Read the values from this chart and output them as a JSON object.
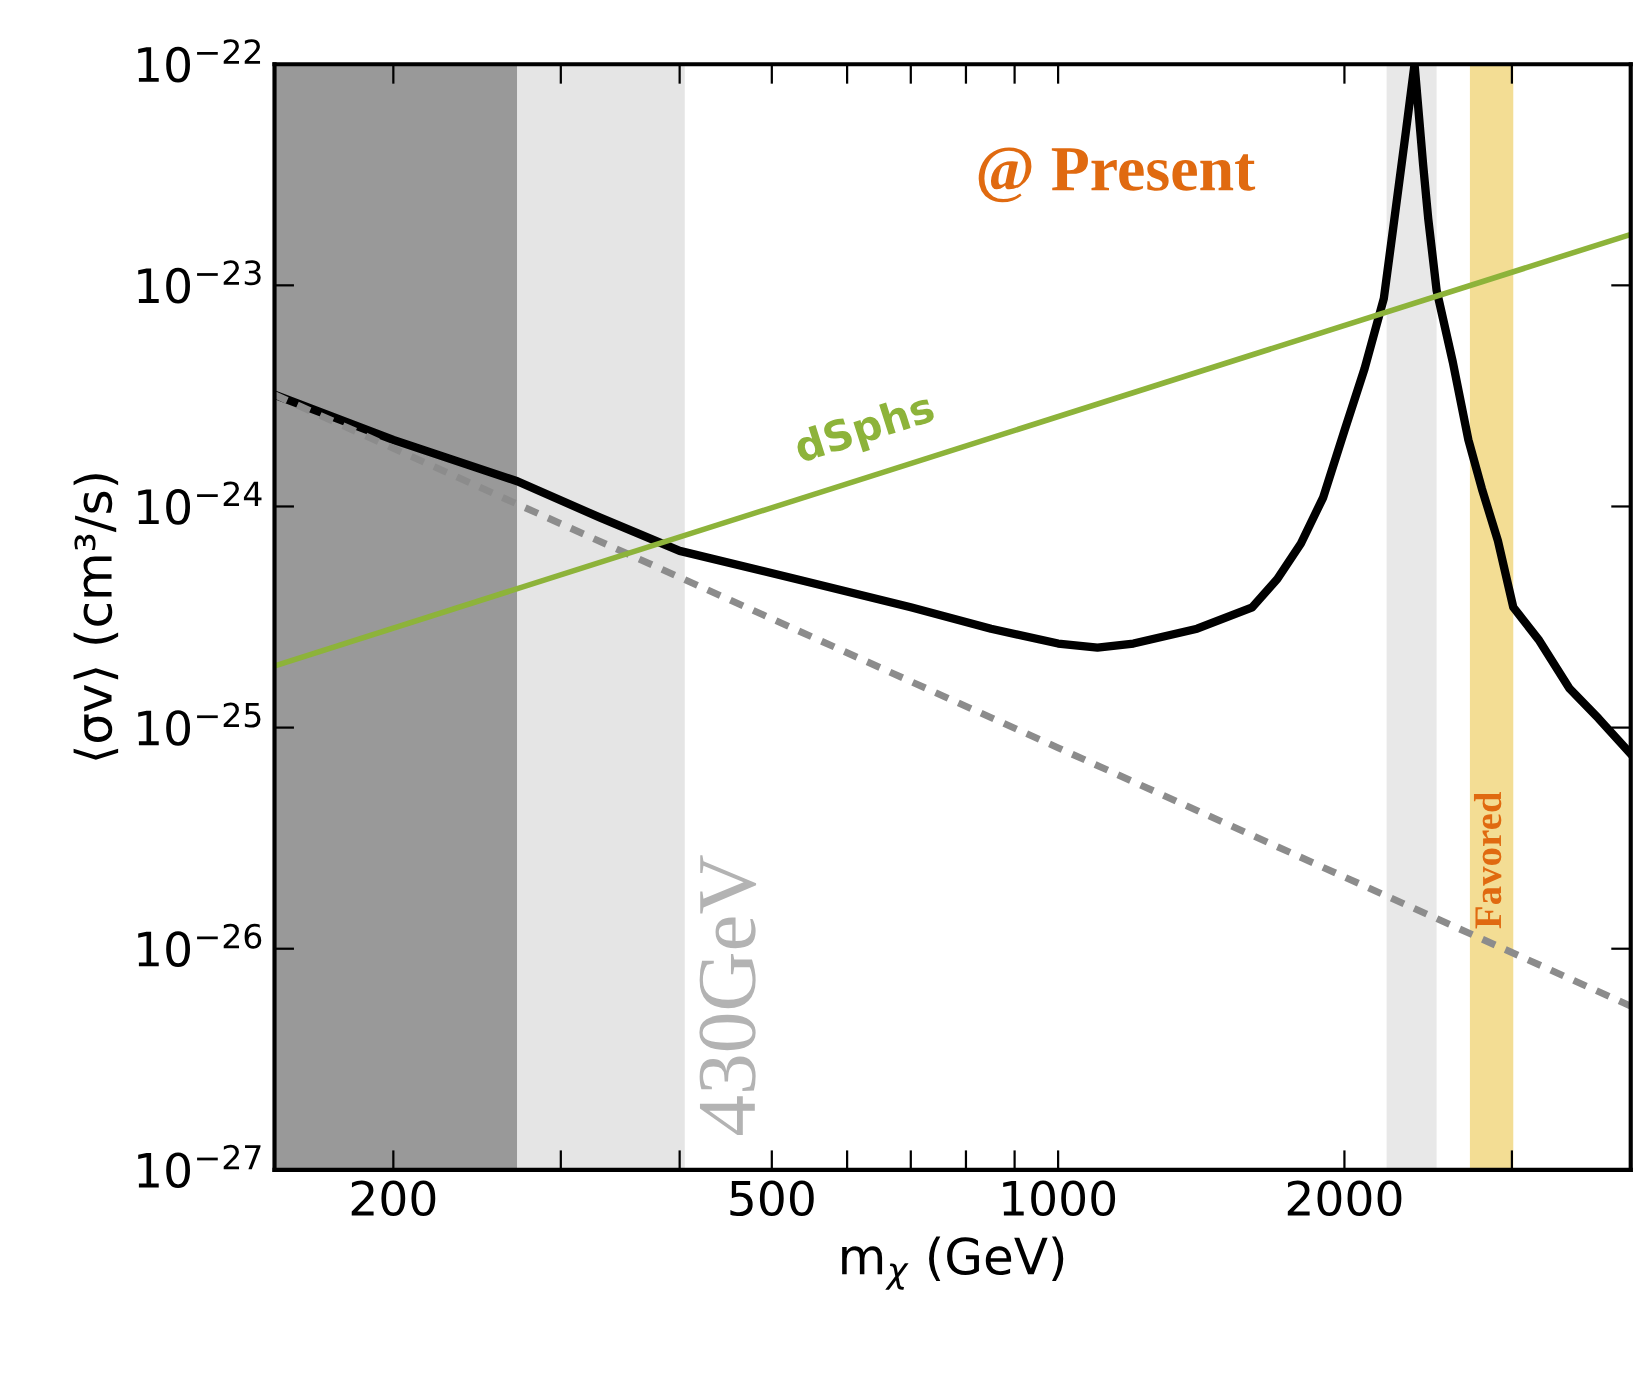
{
  "chart_data": {
    "type": "line",
    "xlabel": "m$_{χ}$ (GeV)",
    "ylabel": "⟨σv⟩ (cm³/s)",
    "log": "xy",
    "grid": false,
    "legend": false,
    "marker": "none",
    "xlim": [
      150,
      4000
    ],
    "ylim": [
      1e-27,
      1e-22
    ],
    "xticks": [
      200,
      {
        "value": 300,
        "label": null
      },
      {
        "value": 400,
        "label": null
      },
      500,
      {
        "value": 600,
        "label": null
      },
      {
        "value": 700,
        "label": null
      },
      {
        "value": 800,
        "label": null
      },
      {
        "value": 900,
        "label": null
      },
      1000,
      2000,
      {
        "value": 3000,
        "label": null
      },
      {
        "value": 4000,
        "label": null
      }
    ],
    "yticks": [
      {
        "value": 1e-27,
        "label": "10$^{−27}$"
      },
      {
        "value": 1e-26,
        "label": "10$^{−26}$"
      },
      {
        "value": 1e-25,
        "label": "10$^{−25}$"
      },
      {
        "value": 1e-24,
        "label": "10$^{−24}$"
      },
      {
        "value": 1e-23,
        "label": "10$^{−23}$"
      },
      {
        "value": 1e-22,
        "label": "10$^{−22}$"
      }
    ],
    "series": [
      {
        "color": "#000000",
        "line_style": "solid",
        "x": [
          150,
          200,
          270,
          330,
          400,
          530,
          700,
          850,
          1000,
          1100,
          1200,
          1400,
          1600,
          1700,
          1800,
          1900,
          2000,
          2100,
          2200,
          2250,
          2320,
          2370,
          2420,
          2450,
          2500,
          2600,
          2700,
          2790,
          2900,
          3010,
          3200,
          3450,
          3700,
          4000
        ],
        "values": [
          3.2e-24,
          2e-24,
          1.3e-24,
          8.9e-25,
          6.3e-25,
          4.7e-25,
          3.5e-25,
          2.8e-25,
          2.4e-25,
          2.3e-25,
          2.4e-25,
          2.8e-25,
          3.5e-25,
          4.7e-25,
          6.8e-25,
          1.1e-24,
          2.2e-24,
          4.2e-24,
          8.7e-24,
          1.8e-23,
          4.9e-23,
          1e-22,
          3.5e-23,
          2e-23,
          9.5e-24,
          4.5e-24,
          2e-24,
          1.2e-24,
          7e-25,
          3.5e-25,
          2.5e-25,
          1.5e-25,
          1.1e-25,
          7.6e-26
        ]
      },
      {
        "color": "#8c8c8c",
        "line_style": "dashed",
        "x": [
          150,
          1000,
          4000
        ],
        "values": [
          3.2e-24,
          8.1e-26,
          5.5e-27
        ]
      },
      {
        "name": "dSphs",
        "color": "#8db33a",
        "line_style": "solid",
        "x": [
          150,
          4000
        ],
        "values": [
          1.9e-25,
          1.7e-23
        ]
      }
    ],
    "bands": [
      {
        "axis": "x",
        "from": 150,
        "to": 270,
        "color": "#999999"
      },
      {
        "axis": "x",
        "from": 270,
        "to": 405,
        "color": "#e5e5e5",
        "label": "430GeV"
      },
      {
        "axis": "x",
        "from": 2215,
        "to": 2500,
        "color": "#e8e8e8"
      },
      {
        "axis": "x",
        "from": 2710,
        "to": 3010,
        "color": "#f3dd94",
        "label": "Favored"
      }
    ],
    "annotations": [
      "@ Present"
    ]
  }
}
